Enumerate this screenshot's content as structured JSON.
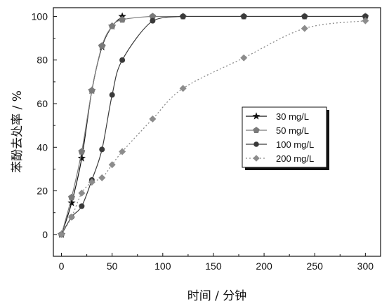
{
  "chart_data": {
    "type": "line",
    "title": "",
    "xlabel": "时间 / 分钟",
    "ylabel": "苯酚去处率 / %",
    "xlim": [
      -8,
      315
    ],
    "ylim": [
      -10,
      104
    ],
    "xticks": [
      0,
      50,
      100,
      150,
      200,
      250,
      300
    ],
    "yticks": [
      0,
      20,
      40,
      60,
      80,
      100
    ],
    "xtick_labels": [
      "0",
      "50",
      "100",
      "150",
      "200",
      "250",
      "300"
    ],
    "ytick_labels": [
      "0",
      "20",
      "40",
      "60",
      "80",
      "100"
    ],
    "grid": false,
    "legend_position": "center-right",
    "series": [
      {
        "name": "30 mg/L",
        "marker": "star",
        "line": "solid",
        "color": "#111111",
        "points": [
          [
            0,
            0
          ],
          [
            10,
            14.5
          ],
          [
            20,
            35
          ],
          [
            30,
            66
          ],
          [
            40,
            86
          ],
          [
            50,
            95.5
          ],
          [
            60,
            100
          ]
        ]
      },
      {
        "name": "50 mg/L",
        "marker": "pentagon",
        "line": "solid",
        "color": "#7a7a7a",
        "points": [
          [
            0,
            0
          ],
          [
            10,
            17
          ],
          [
            20,
            38
          ],
          [
            30,
            66
          ],
          [
            40,
            86.5
          ],
          [
            50,
            95.5
          ],
          [
            60,
            98.5
          ],
          [
            90,
            100
          ],
          [
            120,
            100
          ],
          [
            180,
            100
          ],
          [
            240,
            100
          ],
          [
            300,
            100
          ]
        ]
      },
      {
        "name": "100 mg/L",
        "marker": "circle",
        "line": "solid",
        "color": "#3a3a3a",
        "points": [
          [
            0,
            0
          ],
          [
            10,
            8
          ],
          [
            20,
            13
          ],
          [
            30,
            25
          ],
          [
            40,
            39
          ],
          [
            50,
            64
          ],
          [
            60,
            80
          ],
          [
            90,
            98
          ],
          [
            120,
            100
          ],
          [
            180,
            100
          ],
          [
            240,
            100
          ],
          [
            300,
            100
          ]
        ]
      },
      {
        "name": "200 mg/L",
        "marker": "diamond",
        "line": "dotted",
        "color": "#8c8c8c",
        "points": [
          [
            0,
            0
          ],
          [
            10,
            8
          ],
          [
            20,
            19
          ],
          [
            30,
            24
          ],
          [
            40,
            26
          ],
          [
            50,
            32
          ],
          [
            60,
            38
          ],
          [
            90,
            53
          ],
          [
            120,
            67
          ],
          [
            180,
            81
          ],
          [
            240,
            94.5
          ],
          [
            300,
            98
          ]
        ]
      }
    ]
  }
}
